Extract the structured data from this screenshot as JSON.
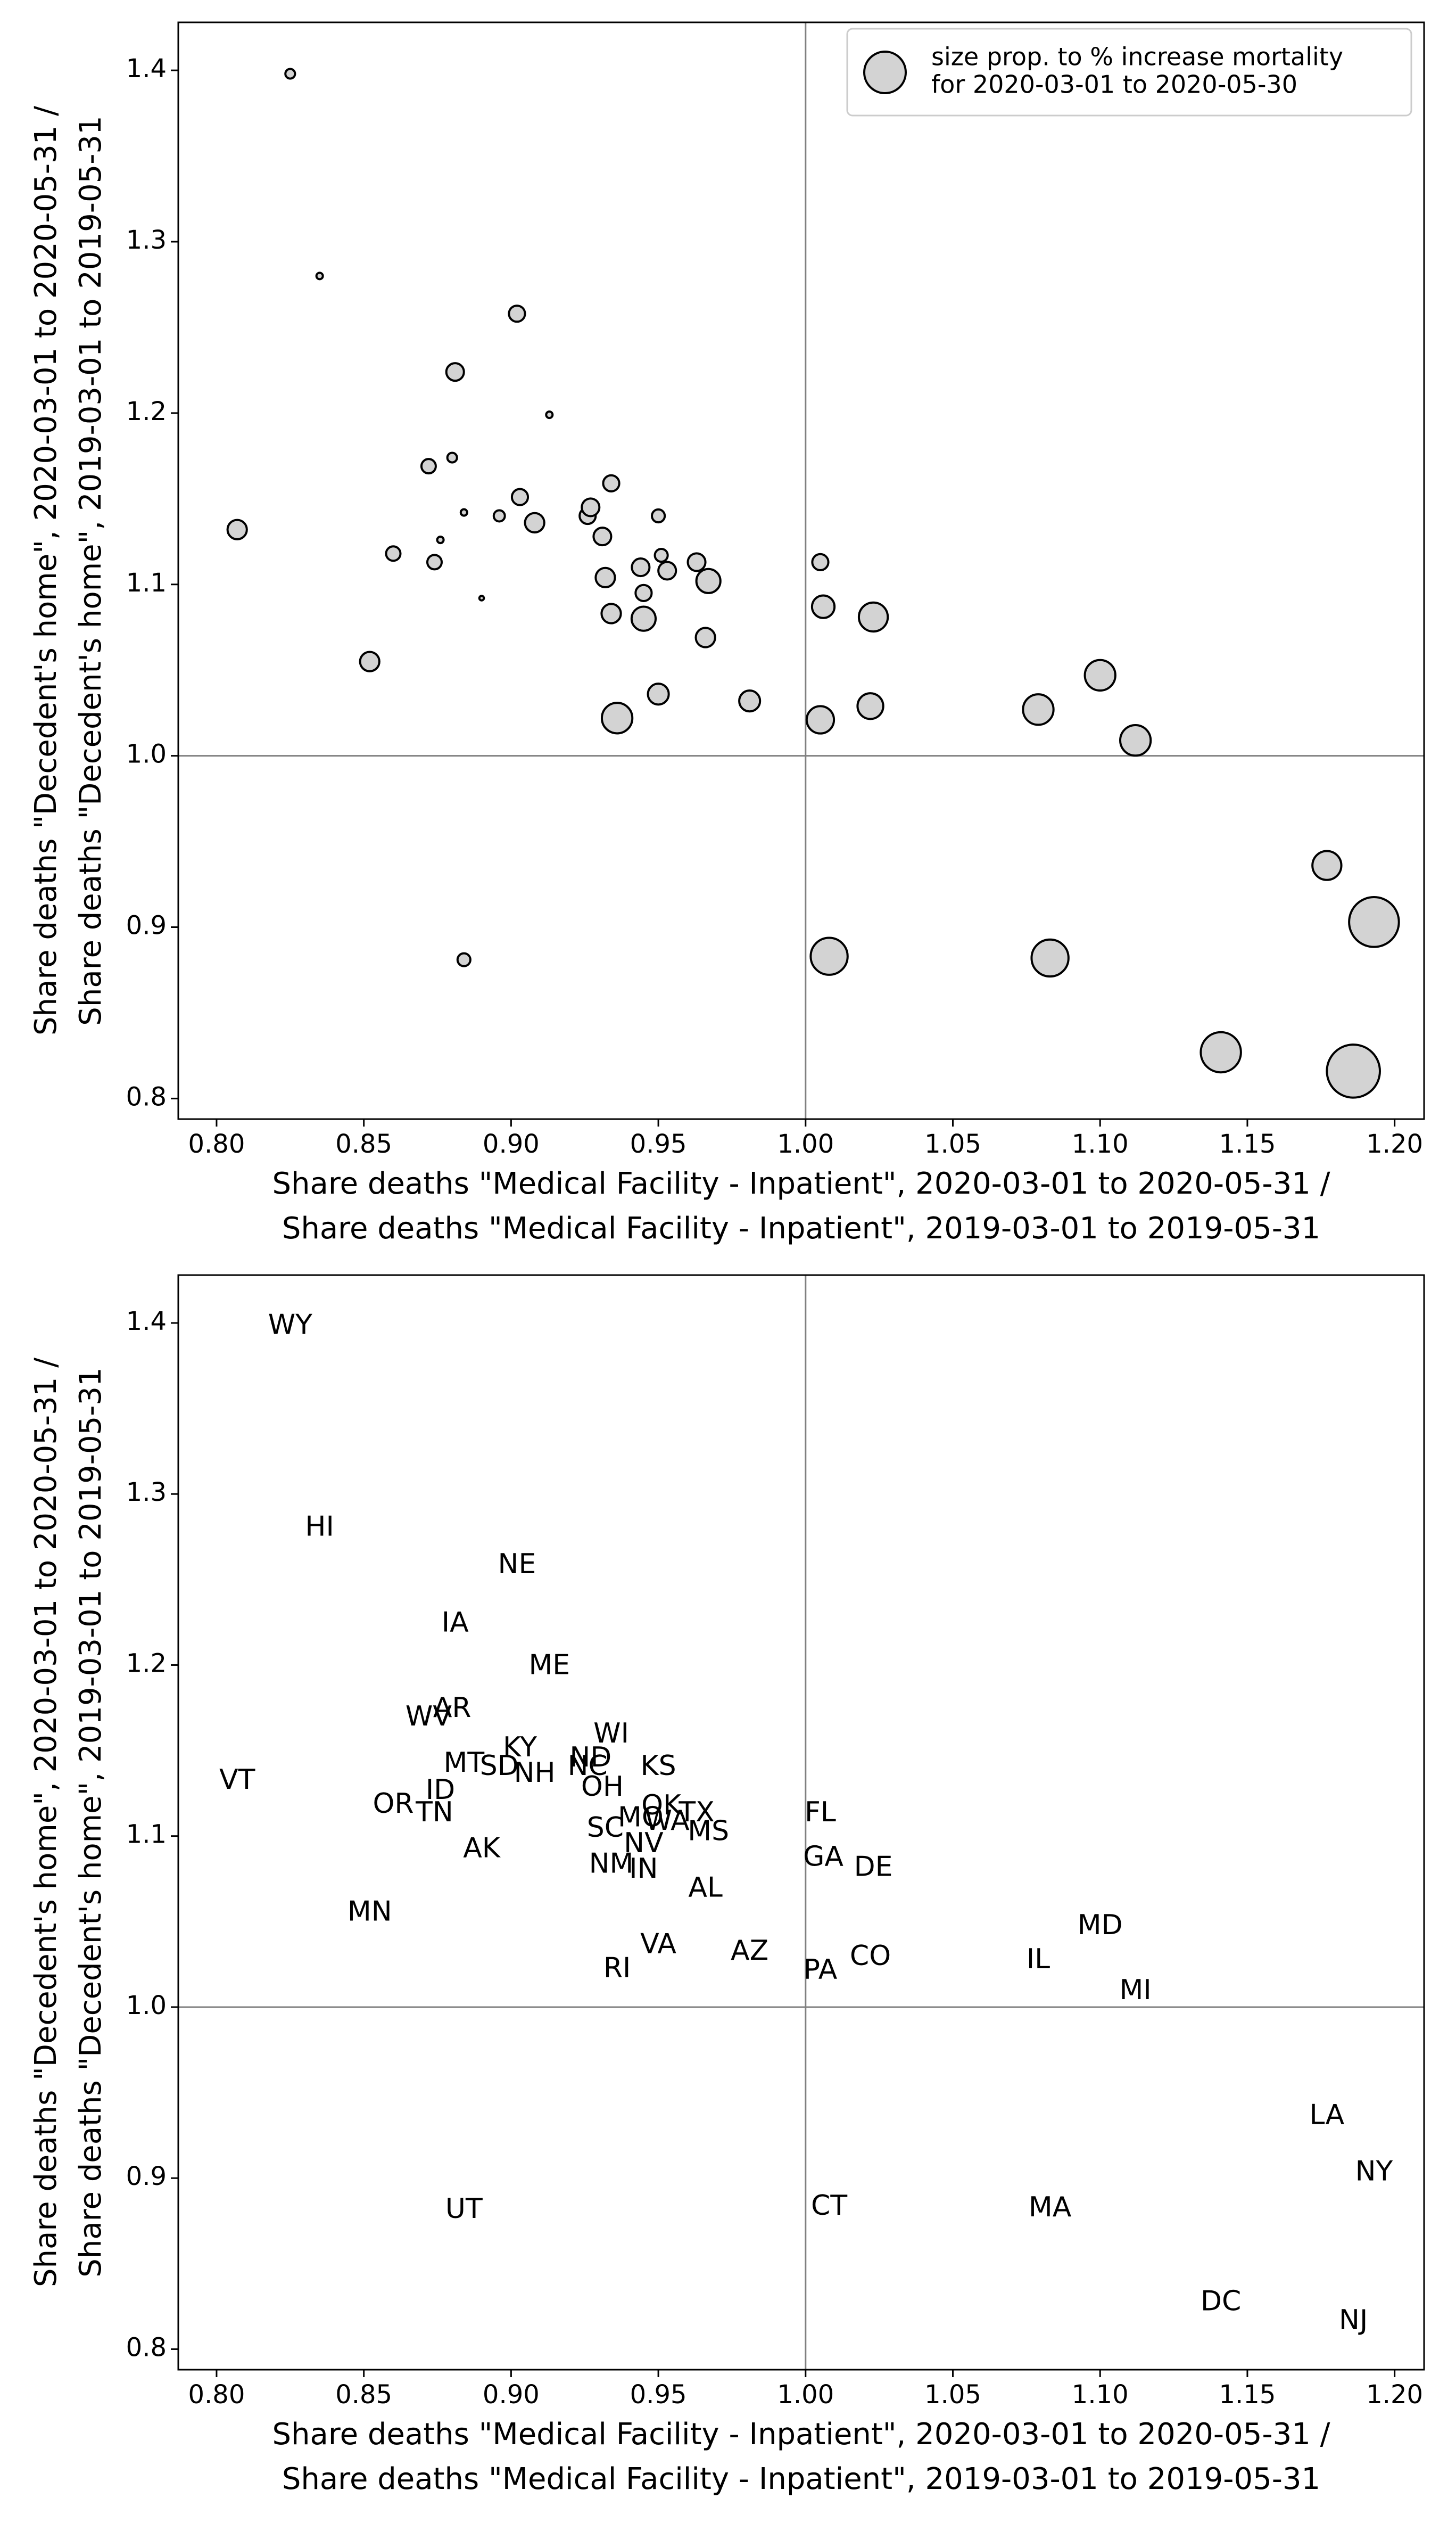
{
  "chart_data": [
    {
      "type": "scatter",
      "legend": [
        "size prop. to % increase mortality",
        "for 2020-03-01 to 2020-05-30"
      ],
      "legend_position": "upper right",
      "xlabel": [
        "Share deaths \"Medical Facility - Inpatient\", 2020-03-01 to 2020-05-31 /",
        "Share deaths \"Medical Facility - Inpatient\", 2019-03-01 to 2019-05-31"
      ],
      "ylabel": [
        "Share deaths \"Decedent's home\", 2020-03-01 to 2020-05-31 /",
        "Share deaths \"Decedent's home\", 2019-03-01 to 2019-05-31"
      ],
      "color": "#d3d3d3",
      "x": [
        0.825,
        0.835,
        0.902,
        0.881,
        0.913,
        0.872,
        0.88,
        0.807,
        0.876,
        0.884,
        0.896,
        0.903,
        0.908,
        0.926,
        0.927,
        0.934,
        0.931,
        0.95,
        0.86,
        0.874,
        0.89,
        0.932,
        0.944,
        0.951,
        0.953,
        0.963,
        0.967,
        0.945,
        0.934,
        0.945,
        0.966,
        0.95,
        0.936,
        0.981,
        0.852,
        0.884,
        1.005,
        1.006,
        1.023,
        1.022,
        1.005,
        1.079,
        1.1,
        1.112,
        1.177,
        1.193,
        1.008,
        1.083,
        1.141,
        1.186
      ],
      "y": [
        1.398,
        1.28,
        1.258,
        1.224,
        1.199,
        1.169,
        1.174,
        1.132,
        1.126,
        1.142,
        1.14,
        1.151,
        1.136,
        1.14,
        1.145,
        1.159,
        1.128,
        1.14,
        1.118,
        1.113,
        1.092,
        1.104,
        1.11,
        1.117,
        1.108,
        1.113,
        1.102,
        1.095,
        1.083,
        1.08,
        1.069,
        1.036,
        1.022,
        1.032,
        1.055,
        0.881,
        1.113,
        1.087,
        1.081,
        1.029,
        1.021,
        1.027,
        1.047,
        1.009,
        0.936,
        0.903,
        0.883,
        0.882,
        0.827,
        0.816
      ],
      "sizes": [
        9,
        4,
        25,
        30,
        4,
        20,
        9,
        36,
        4,
        4,
        12,
        25,
        36,
        25,
        30,
        25,
        30,
        16,
        20,
        20,
        2,
        36,
        30,
        16,
        30,
        30,
        56,
        25,
        36,
        56,
        36,
        42,
        90,
        42,
        36,
        16,
        25,
        49,
        81,
        64,
        72,
        90,
        90,
        90,
        81,
        240,
        132,
        132,
        156,
        272
      ],
      "reference_lines": {
        "x": 1.0,
        "y": 1.0
      },
      "xlim": [
        0.787,
        1.21
      ],
      "ylim": [
        0.788,
        1.428
      ],
      "xticks": [
        {
          "value": 0.8,
          "label": "0.80"
        },
        0.85,
        {
          "value": 0.9,
          "label": "0.90"
        },
        0.95,
        {
          "value": 1.0,
          "label": "1.00"
        },
        1.05,
        {
          "value": 1.1,
          "label": "1.10"
        },
        1.15,
        {
          "value": 1.2,
          "label": "1.20"
        }
      ],
      "yticks": [
        0.8,
        0.9,
        {
          "value": 1.0,
          "label": "1.0"
        },
        1.1,
        1.2,
        1.3,
        1.4
      ]
    },
    {
      "type": "text-scatter",
      "xlabel": [
        "Share deaths \"Medical Facility - Inpatient\", 2020-03-01 to 2020-05-31 /",
        "Share deaths \"Medical Facility - Inpatient\", 2019-03-01 to 2019-05-31"
      ],
      "ylabel": [
        "Share deaths \"Decedent's home\", 2020-03-01 to 2020-05-31 /",
        "Share deaths \"Decedent's home\", 2019-03-01 to 2019-05-31"
      ],
      "labels": [
        "WY",
        "HI",
        "NE",
        "IA",
        "ME",
        "WV",
        "AR",
        "VT",
        "ID",
        "MT",
        "SD",
        "KY",
        "NH",
        "NC",
        "ND",
        "WI",
        "OH",
        "KS",
        "OR",
        "TN",
        "AK",
        "SC",
        "MO",
        "OK",
        "WA",
        "TX",
        "MS",
        "NV",
        "NM",
        "IN",
        "AL",
        "VA",
        "RI",
        "AZ",
        "MN",
        "UT",
        "FL",
        "GA",
        "DE",
        "CO",
        "PA",
        "IL",
        "MD",
        "MI",
        "LA",
        "NY",
        "CT",
        "MA",
        "DC",
        "NJ"
      ],
      "x": [
        0.825,
        0.835,
        0.902,
        0.881,
        0.913,
        0.872,
        0.88,
        0.807,
        0.876,
        0.884,
        0.896,
        0.903,
        0.908,
        0.926,
        0.927,
        0.934,
        0.931,
        0.95,
        0.86,
        0.874,
        0.89,
        0.932,
        0.944,
        0.951,
        0.953,
        0.963,
        0.967,
        0.945,
        0.934,
        0.945,
        0.966,
        0.95,
        0.936,
        0.981,
        0.852,
        0.884,
        1.005,
        1.006,
        1.023,
        1.022,
        1.005,
        1.079,
        1.1,
        1.112,
        1.177,
        1.193,
        1.008,
        1.083,
        1.141,
        1.186
      ],
      "y": [
        1.398,
        1.28,
        1.258,
        1.224,
        1.199,
        1.169,
        1.174,
        1.132,
        1.126,
        1.142,
        1.14,
        1.151,
        1.136,
        1.14,
        1.145,
        1.159,
        1.128,
        1.14,
        1.118,
        1.113,
        1.092,
        1.104,
        1.11,
        1.117,
        1.108,
        1.113,
        1.102,
        1.095,
        1.083,
        1.08,
        1.069,
        1.036,
        1.022,
        1.032,
        1.055,
        0.881,
        1.113,
        1.087,
        1.081,
        1.029,
        1.021,
        1.027,
        1.047,
        1.009,
        0.936,
        0.903,
        0.883,
        0.882,
        0.827,
        0.816
      ],
      "reference_lines": {
        "x": 1.0,
        "y": 1.0
      },
      "xlim": [
        0.787,
        1.21
      ],
      "ylim": [
        0.788,
        1.428
      ],
      "xticks": [
        {
          "value": 0.8,
          "label": "0.80"
        },
        0.85,
        {
          "value": 0.9,
          "label": "0.90"
        },
        0.95,
        {
          "value": 1.0,
          "label": "1.00"
        },
        1.05,
        {
          "value": 1.1,
          "label": "1.10"
        },
        1.15,
        {
          "value": 1.2,
          "label": "1.20"
        }
      ],
      "yticks": [
        0.8,
        0.9,
        {
          "value": 1.0,
          "label": "1.0"
        },
        1.1,
        1.2,
        1.3,
        1.4
      ]
    }
  ]
}
